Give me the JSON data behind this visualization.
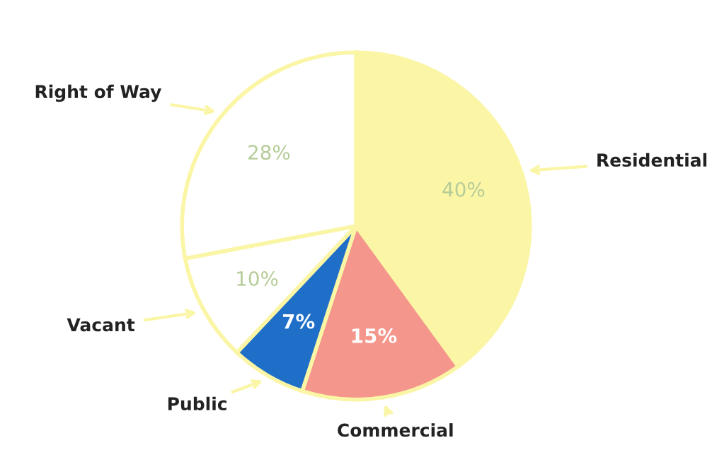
{
  "chart_data": {
    "type": "pie",
    "categories": [
      "Residential",
      "Commercial",
      "Public",
      "Vacant",
      "Right of Way"
    ],
    "values": [
      40,
      15,
      7,
      10,
      28
    ],
    "colors": [
      "#fbf5a6",
      "#f4968b",
      "#1f6fc8",
      "#ffffff",
      "#ffffff"
    ],
    "value_labels": [
      "40%",
      "15%",
      "7%",
      "10%",
      "28%"
    ]
  }
}
